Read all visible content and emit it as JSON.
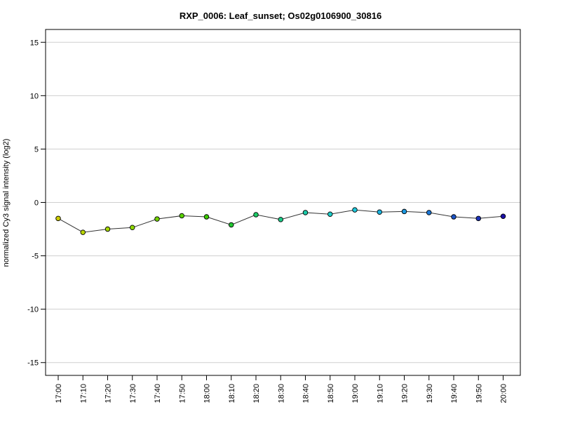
{
  "chart_data": {
    "type": "line",
    "title": "RXP_0006: Leaf_sunset; Os02g0106900_30816",
    "ylabel": "normalized Cy3 signal intensity (log2)",
    "xlabel": "",
    "ylim": [
      -16.2,
      16.2
    ],
    "yticks": [
      -15,
      -10,
      -5,
      0,
      5,
      10,
      15
    ],
    "grid": true,
    "categories": [
      "17:00",
      "17:10",
      "17:20",
      "17:30",
      "17:40",
      "17:50",
      "18:00",
      "18:10",
      "18:20",
      "18:30",
      "18:40",
      "18:50",
      "19:00",
      "19:10",
      "19:20",
      "19:30",
      "19:40",
      "19:50",
      "20:00"
    ],
    "values": [
      -1.5,
      -2.8,
      -2.5,
      -2.35,
      -1.55,
      -1.25,
      -1.35,
      -2.1,
      -1.15,
      -1.6,
      -0.95,
      -1.1,
      -0.7,
      -0.9,
      -0.85,
      -0.95,
      -1.35,
      -1.5,
      -1.3
    ],
    "point_colors": [
      "#cccc00",
      "#b8d400",
      "#a6d800",
      "#8ed800",
      "#74d400",
      "#58d200",
      "#3ccc00",
      "#22c832",
      "#1ccc66",
      "#1ccc88",
      "#1cccaa",
      "#1cccc8",
      "#1cc8dc",
      "#1cb4e0",
      "#1c98e0",
      "#1c78d8",
      "#1c54c8",
      "#1c32b8",
      "#1c10a8"
    ]
  }
}
